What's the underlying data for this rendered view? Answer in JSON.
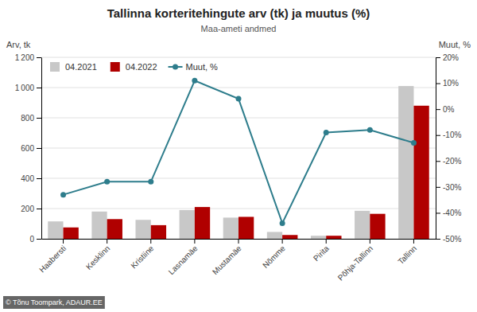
{
  "chart_data": {
    "type": "bar",
    "title": "Tallinna korteritehingute arv (tk) ja muutus (%)",
    "subtitle": "Maa-ameti andmed",
    "ylabel": "Arv, tk",
    "y2label": "Muut, %",
    "annotations": [
      "© Tõnu Toompark, ADAUR.EE"
    ],
    "categories": [
      "Haabersti",
      "Kesklinn",
      "Kristiine",
      "Lasnamäe",
      "Mustamäe",
      "Nõmme",
      "Pirita",
      "Põhja-Tallinn",
      "Tallinn"
    ],
    "series": [
      {
        "name": "04.2021",
        "color": "#c8c8c8",
        "values": [
          115,
          180,
          125,
          190,
          140,
          45,
          20,
          185,
          1010
        ]
      },
      {
        "name": "04.2022",
        "color": "#b00000",
        "values": [
          75,
          130,
          90,
          210,
          145,
          25,
          20,
          165,
          880
        ]
      },
      {
        "name": "Muut, %",
        "type": "line",
        "axis": "y2",
        "color": "#2e7d8c",
        "marker": "circle",
        "values": [
          -33,
          -28,
          -28,
          11,
          4,
          -44,
          -9,
          -8,
          -13
        ]
      }
    ],
    "ylim": [
      0,
      1200
    ],
    "yticks": [
      0,
      200,
      400,
      600,
      800,
      {
        "value": 1000,
        "label": "1 000"
      },
      {
        "value": 1200,
        "label": "1 200"
      }
    ],
    "y2lim": [
      -50,
      20
    ],
    "y2ticks": [
      {
        "value": -50,
        "label": "-50%"
      },
      {
        "value": -40,
        "label": "-40%"
      },
      {
        "value": -30,
        "label": "-30%"
      },
      {
        "value": -20,
        "label": "-20%"
      },
      {
        "value": -10,
        "label": "-10%"
      },
      {
        "value": 0,
        "label": "0%"
      },
      {
        "value": 10,
        "label": "10%"
      },
      {
        "value": 20,
        "label": "20%"
      }
    ],
    "grid": true,
    "legend": "upper left"
  }
}
